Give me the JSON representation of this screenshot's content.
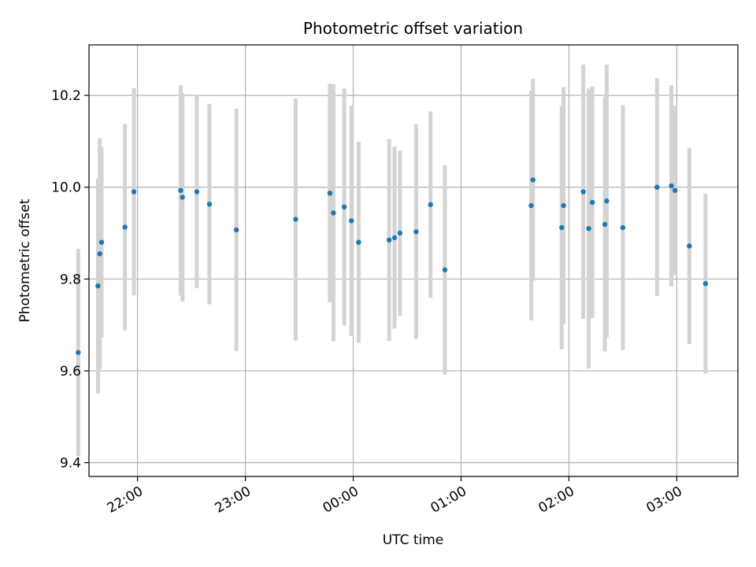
{
  "chart_data": {
    "type": "scatter",
    "title": "Photometric offset variation",
    "xlabel": "UTC time",
    "ylabel": "Photometric offset",
    "grid": true,
    "x_unit": "UTC time (HH:MM, night spanning midnight)",
    "xlim": [
      "21:33",
      "03:34"
    ],
    "ylim": [
      9.37,
      10.31
    ],
    "x_ticks": [
      "22:00",
      "23:00",
      "00:00",
      "01:00",
      "02:00",
      "03:00"
    ],
    "y_ticks": [
      "9.4",
      "9.6",
      "9.8",
      "10.0",
      "10.2"
    ],
    "colors": {
      "marker": "#1f77b4",
      "errorbar": "#d3d3d3",
      "grid": "#b0b0b0"
    },
    "points": [
      {
        "x": "21:27",
        "y": 9.64,
        "err": 0.226
      },
      {
        "x": "21:38",
        "y": 9.785,
        "err": 0.234
      },
      {
        "x": "21:39",
        "y": 9.855,
        "err": 0.252
      },
      {
        "x": "21:40",
        "y": 9.88,
        "err": 0.207
      },
      {
        "x": "21:53",
        "y": 9.913,
        "err": 0.225
      },
      {
        "x": "21:58",
        "y": 9.99,
        "err": 0.226
      },
      {
        "x": "22:24",
        "y": 9.993,
        "err": 0.229
      },
      {
        "x": "22:25",
        "y": 9.978,
        "err": 0.227
      },
      {
        "x": "22:33",
        "y": 9.99,
        "err": 0.21
      },
      {
        "x": "22:40",
        "y": 9.963,
        "err": 0.218
      },
      {
        "x": "22:55",
        "y": 9.907,
        "err": 0.264
      },
      {
        "x": "23:28",
        "y": 9.93,
        "err": 0.264
      },
      {
        "x": "23:47",
        "y": 9.987,
        "err": 0.238
      },
      {
        "x": "23:49",
        "y": 9.944,
        "err": 0.28
      },
      {
        "x": "23:55",
        "y": 9.957,
        "err": 0.258
      },
      {
        "x": "23:59",
        "y": 9.927,
        "err": 0.251
      },
      {
        "x": "00:03",
        "y": 9.88,
        "err": 0.219
      },
      {
        "x": "00:20",
        "y": 9.885,
        "err": 0.22
      },
      {
        "x": "00:23",
        "y": 9.89,
        "err": 0.198
      },
      {
        "x": "00:26",
        "y": 9.9,
        "err": 0.18
      },
      {
        "x": "00:35",
        "y": 9.903,
        "err": 0.234
      },
      {
        "x": "00:43",
        "y": 9.962,
        "err": 0.203
      },
      {
        "x": "00:51",
        "y": 9.82,
        "err": 0.228
      },
      {
        "x": "01:39",
        "y": 9.96,
        "err": 0.25
      },
      {
        "x": "01:40",
        "y": 10.016,
        "err": 0.22
      },
      {
        "x": "01:56",
        "y": 9.912,
        "err": 0.265
      },
      {
        "x": "01:57",
        "y": 9.96,
        "err": 0.258
      },
      {
        "x": "02:08",
        "y": 9.99,
        "err": 0.277
      },
      {
        "x": "02:11",
        "y": 9.91,
        "err": 0.305
      },
      {
        "x": "02:13",
        "y": 9.967,
        "err": 0.252
      },
      {
        "x": "02:20",
        "y": 9.919,
        "err": 0.277
      },
      {
        "x": "02:21",
        "y": 9.97,
        "err": 0.297
      },
      {
        "x": "02:30",
        "y": 9.912,
        "err": 0.267
      },
      {
        "x": "02:49",
        "y": 10.0,
        "err": 0.237
      },
      {
        "x": "02:57",
        "y": 10.003,
        "err": 0.219
      },
      {
        "x": "02:59",
        "y": 9.993,
        "err": 0.185
      },
      {
        "x": "03:07",
        "y": 9.872,
        "err": 0.214
      },
      {
        "x": "03:16",
        "y": 9.79,
        "err": 0.196
      }
    ]
  }
}
